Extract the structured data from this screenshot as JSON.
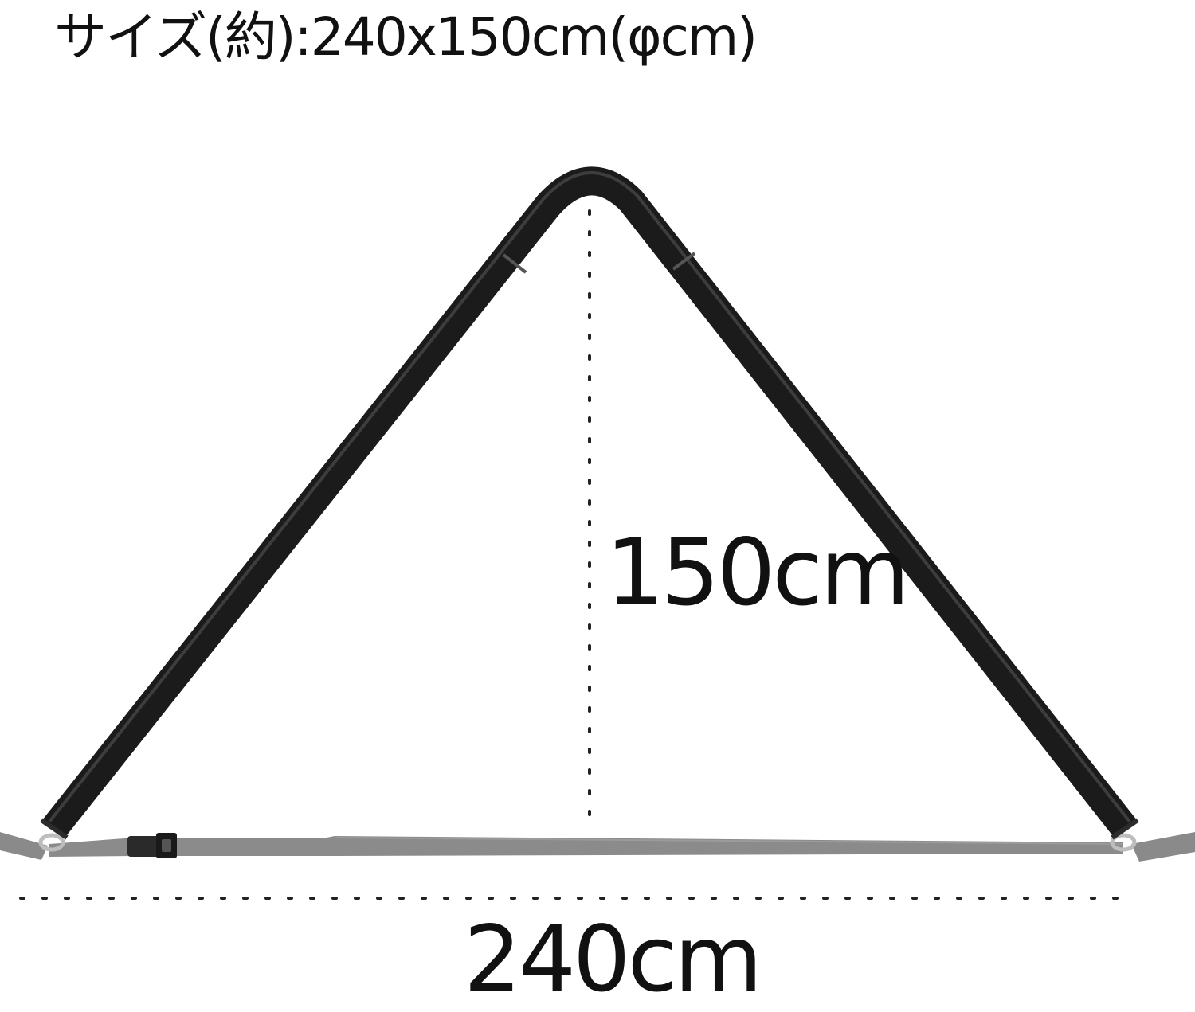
{
  "title": "サイズ(約):240x150cm(φcm)",
  "dimensions": {
    "height_label": "150cm",
    "width_label": "240cm"
  },
  "colors": {
    "pole": "#1b1b1b",
    "strap": "#8a8a8a",
    "dots": "#222222"
  }
}
